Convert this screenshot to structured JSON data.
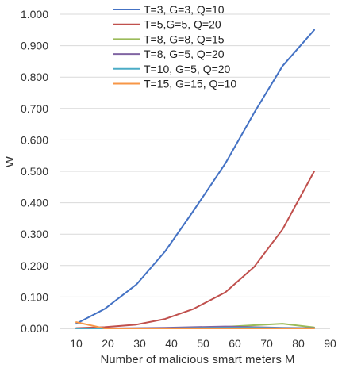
{
  "chart_data": {
    "type": "line",
    "title": "",
    "xlabel": "Number of malicious smart meters M",
    "ylabel": "W",
    "xlim": [
      5,
      90
    ],
    "ylim": [
      0,
      1.0
    ],
    "x_ticks": [
      "10",
      "20",
      "30",
      "40",
      "50",
      "60",
      "70",
      "80",
      "90"
    ],
    "y_ticks": [
      "0.000",
      "0.100",
      "0.200",
      "0.300",
      "0.400",
      "0.500",
      "0.600",
      "0.700",
      "0.800",
      "0.900",
      "1.000"
    ],
    "grid": "horizontal",
    "legend_position": "top-center",
    "series": [
      {
        "name": "T=3, G=3, Q=10",
        "color": "#4472C4",
        "x": [
          10,
          19,
          29,
          38,
          47,
          57,
          66,
          75,
          85
        ],
        "y": [
          0.015,
          0.062,
          0.14,
          0.245,
          0.375,
          0.525,
          0.685,
          0.835,
          0.95
        ]
      },
      {
        "name": "T=5,G=5, Q=20",
        "color": "#C0504D",
        "x": [
          10,
          19,
          29,
          38,
          47,
          57,
          66,
          75,
          85
        ],
        "y": [
          0.001,
          0.004,
          0.012,
          0.03,
          0.062,
          0.115,
          0.195,
          0.315,
          0.5
        ]
      },
      {
        "name": "T=8, G=8, Q=15",
        "color": "#9BBB59",
        "x": [
          10,
          19,
          29,
          38,
          47,
          57,
          66,
          75,
          85
        ],
        "y": [
          0.0,
          0.0,
          0.0,
          0.001,
          0.002,
          0.005,
          0.01,
          0.015,
          0.003
        ]
      },
      {
        "name": "T=8, G=5, Q=20",
        "color": "#8064A2",
        "x": [
          10,
          19,
          29,
          38,
          47,
          57,
          66,
          75,
          85
        ],
        "y": [
          0.0,
          0.0,
          0.001,
          0.002,
          0.004,
          0.006,
          0.004,
          0.002,
          0.001
        ]
      },
      {
        "name": "T=10, G=5, Q=20",
        "color": "#4BACC6",
        "x": [
          10,
          19,
          29,
          38,
          47,
          57,
          66,
          75,
          85
        ],
        "y": [
          0.0,
          0.0,
          0.0,
          0.0,
          0.001,
          0.002,
          0.002,
          0.001,
          0.0
        ]
      },
      {
        "name": "T=15, G=15, Q=10",
        "color": "#F79646",
        "x": [
          10,
          19,
          29,
          38,
          47,
          57,
          66,
          75,
          85
        ],
        "y": [
          0.02,
          0.0,
          0.0,
          0.0,
          0.0,
          0.0,
          0.0,
          0.0,
          0.0
        ]
      }
    ]
  }
}
